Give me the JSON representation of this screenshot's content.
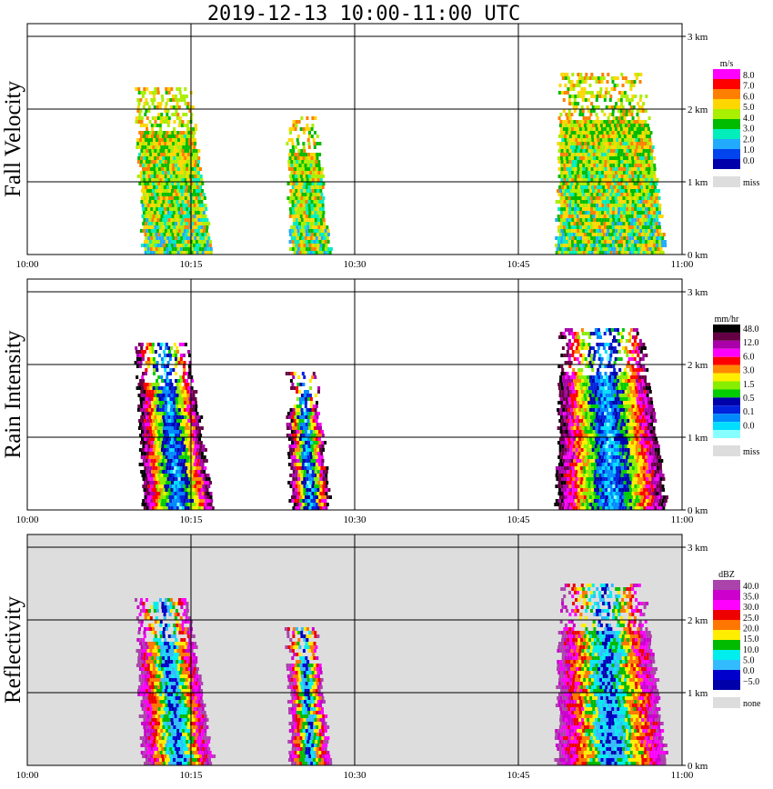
{
  "title": "2019-12-13   10:00-11:00 UTC",
  "colors": {
    "grid": "#000000",
    "missing": "#dddddd",
    "background": "#ffffff"
  },
  "chart_data": [
    {
      "type": "heatmap",
      "panel": "fall-velocity",
      "ylabel": "Fall Velocity",
      "x_ticks": [
        "10:00",
        "10:15",
        "10:30",
        "10:45",
        "11:00"
      ],
      "x_range": [
        "10:00",
        "11:00"
      ],
      "y_ticks": [
        "1 km",
        "2 km",
        "3 km"
      ],
      "y_range_km": [
        0,
        3.2
      ],
      "grid": true,
      "background": "none",
      "colorbar": {
        "unit": "m/s",
        "labels": [
          "8.0",
          "7.0",
          "6.0",
          "5.0",
          "4.0",
          "3.0",
          "2.0",
          "1.0",
          "0.0"
        ],
        "colors": [
          "#ff00ff",
          "#ff0000",
          "#ff7f00",
          "#ffd700",
          "#aaee00",
          "#00bb00",
          "#00eebb",
          "#22aaff",
          "#0044ee",
          "#0000aa"
        ],
        "missing_label": "miss"
      },
      "echoes": [
        {
          "start": "10:10:40",
          "end": "10:17:00",
          "top_km": 2.3,
          "shift_min": 1.2
        },
        {
          "start": "10:24:10",
          "end": "10:27:40",
          "top_km": 1.9,
          "shift_min": 0.6
        },
        {
          "start": "10:48:30",
          "end": "10:58:30",
          "top_km": 2.5,
          "shift_min": 0.3
        }
      ]
    },
    {
      "type": "heatmap",
      "panel": "rain-intensity",
      "ylabel": "Rain Intensity",
      "x_ticks": [
        "10:00",
        "10:15",
        "10:30",
        "10:45",
        "11:00"
      ],
      "x_range": [
        "10:00",
        "11:00"
      ],
      "y_ticks": [
        "1 km",
        "2 km",
        "3 km"
      ],
      "y_range_km": [
        0,
        3.2
      ],
      "grid": true,
      "background": "none",
      "colorbar": {
        "unit": "mm/hr",
        "labels": [
          "48.0",
          "12.0",
          "6.0",
          "3.0",
          "1.5",
          "0.5",
          "0.1",
          "0.0"
        ],
        "colors": [
          "#000000",
          "#660044",
          "#aa00aa",
          "#ff00ff",
          "#ff0000",
          "#ff8800",
          "#ffee00",
          "#88ee00",
          "#00cc00",
          "#0000aa",
          "#0022dd",
          "#0088ff",
          "#00ddff",
          "#88ffff"
        ],
        "missing_label": "miss"
      },
      "echoes": [
        {
          "start": "10:10:40",
          "end": "10:17:00",
          "top_km": 2.3,
          "shift_min": 1.2
        },
        {
          "start": "10:24:10",
          "end": "10:27:40",
          "top_km": 1.9,
          "shift_min": 0.6
        },
        {
          "start": "10:48:30",
          "end": "10:58:30",
          "top_km": 2.5,
          "shift_min": 0.3
        }
      ]
    },
    {
      "type": "heatmap",
      "panel": "reflectivity",
      "ylabel": "Reflectivity",
      "x_ticks": [
        "10:00",
        "10:15",
        "10:30",
        "10:45",
        "11:00"
      ],
      "x_range": [
        "10:00",
        "11:00"
      ],
      "y_ticks": [
        "1 km",
        "2 km",
        "3 km"
      ],
      "y_range_km": [
        0,
        3.2
      ],
      "grid": true,
      "background": "missing",
      "colorbar": {
        "unit": "dBZ",
        "labels": [
          "40.0",
          "35.0",
          "30.0",
          "25.0",
          "20.0",
          "15.0",
          "10.0",
          "5.0",
          "0.0",
          "−5.0"
        ],
        "colors": [
          "#aa44aa",
          "#cc00cc",
          "#ff00ff",
          "#ee0000",
          "#ff7700",
          "#ffee00",
          "#00bb00",
          "#00eeee",
          "#33bbff",
          "#0000cc",
          "#0000aa"
        ],
        "missing_label": "none"
      },
      "echoes": [
        {
          "start": "10:10:40",
          "end": "10:17:00",
          "top_km": 2.3,
          "shift_min": 1.2
        },
        {
          "start": "10:24:10",
          "end": "10:27:40",
          "top_km": 1.9,
          "shift_min": 0.6
        },
        {
          "start": "10:48:30",
          "end": "10:58:30",
          "top_km": 2.5,
          "shift_min": 0.3
        }
      ]
    }
  ]
}
